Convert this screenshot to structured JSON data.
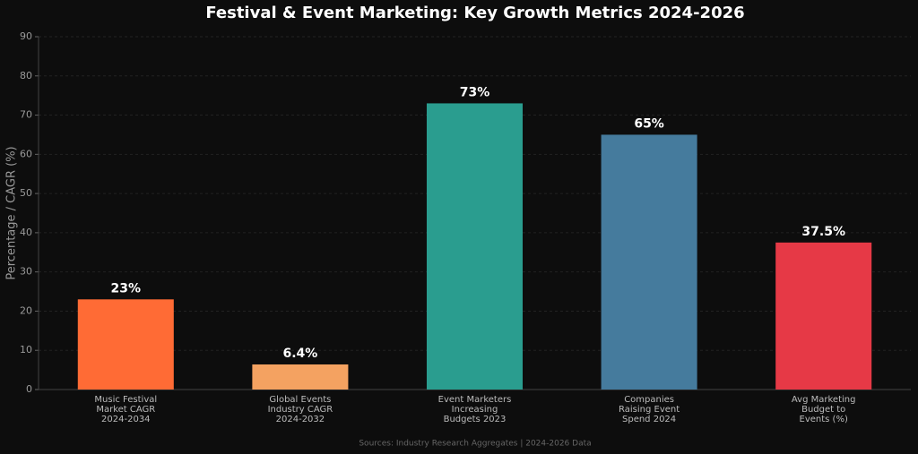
{
  "chart_data": {
    "type": "bar",
    "title": "Festival & Event Marketing: Key Growth Metrics 2024-2026",
    "y_label": "Percentage / CAGR (%)",
    "source": "Sources: Industry Research Aggregates | 2024-2026 Data",
    "categories": [
      "Music Festival\nMarket CAGR\n2024-2034",
      "Global Events\nIndustry CAGR\n2024-2032",
      "Event Marketers\nIncreasing\nBudgets 2023",
      "Companies\nRaising Event\nSpend 2024",
      "Avg Marketing\nBudget to\nEvents (%)"
    ],
    "values": [
      23,
      6.4,
      73,
      65,
      37.5
    ],
    "value_labels": [
      "23%",
      "6.4%",
      "73%",
      "65%",
      "37.5%"
    ],
    "colors": [
      "#ff6b35",
      "#f4a261",
      "#2a9d8f",
      "#457b9d",
      "#e63946"
    ],
    "ylim": [
      0,
      90
    ],
    "yticks": [
      0,
      10,
      20,
      30,
      40,
      50,
      60,
      70,
      80,
      90
    ],
    "grid": true
  }
}
